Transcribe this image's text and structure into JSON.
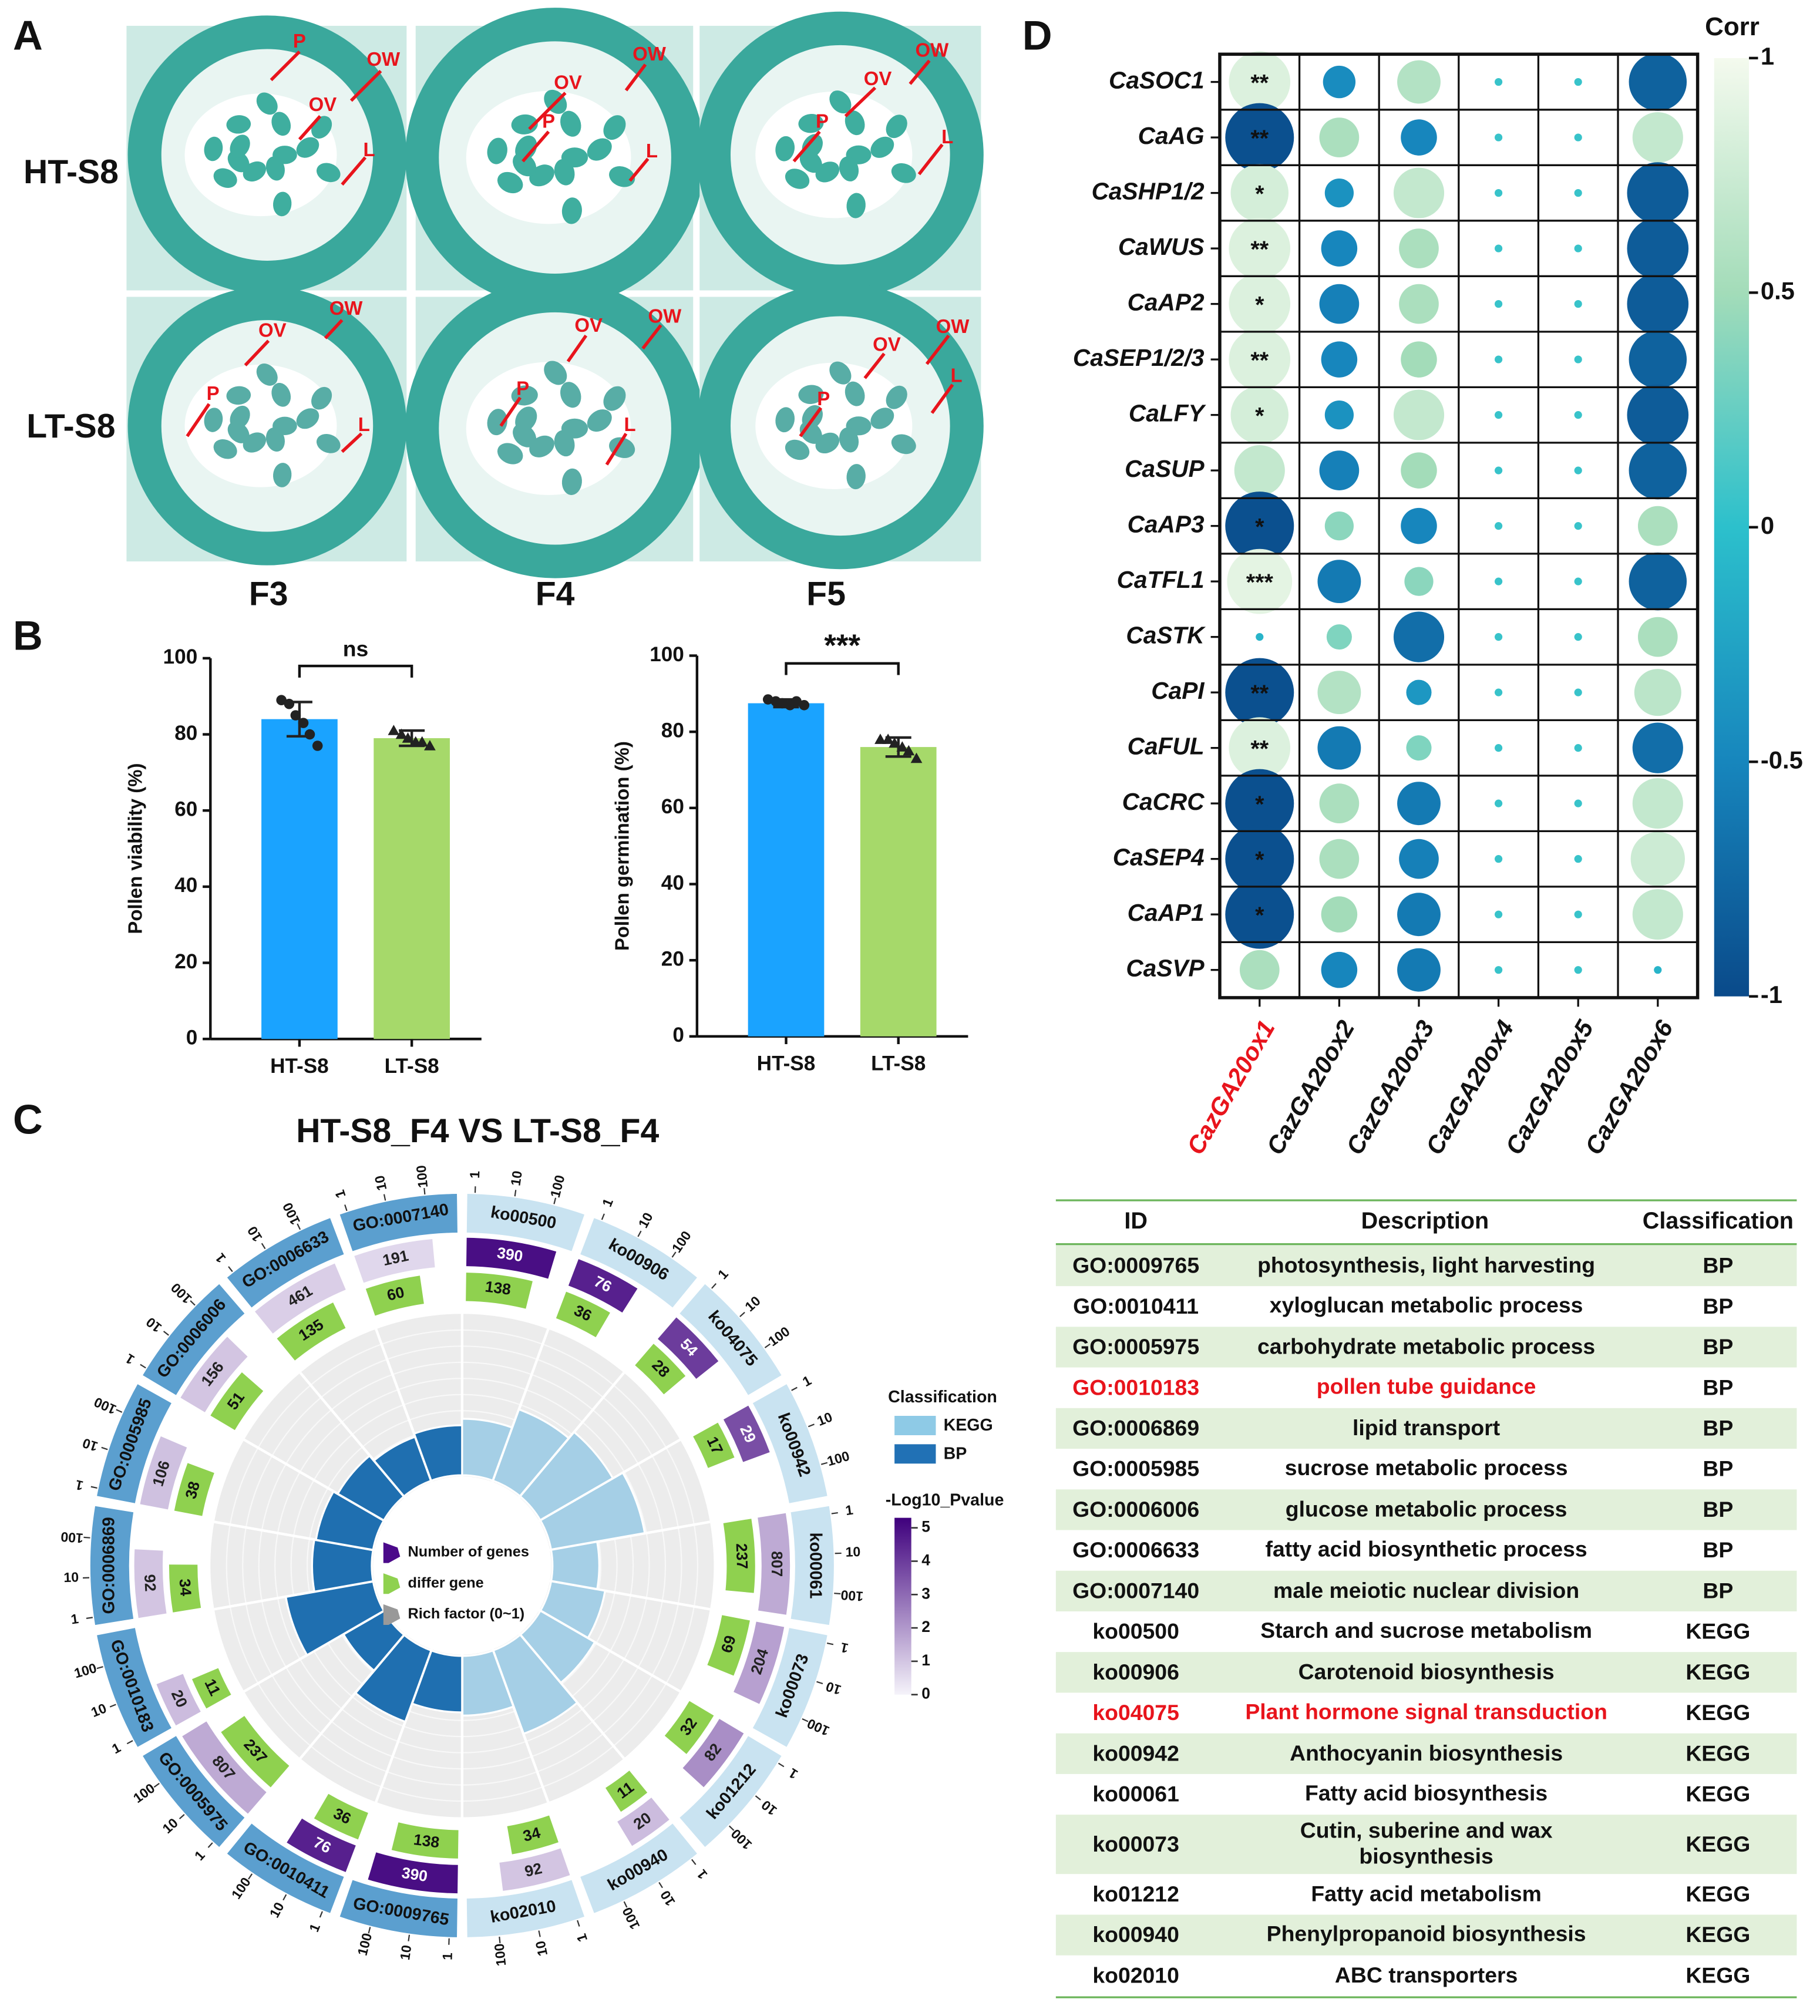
{
  "panel_labels": [
    "A",
    "B",
    "C",
    "D"
  ],
  "panel_a": {
    "row_labels": [
      "HT-S8",
      "LT-S8"
    ],
    "column_labels": [
      "F3",
      "F4",
      "F5"
    ],
    "annotations": [
      "P",
      "OV",
      "OW",
      "L"
    ]
  },
  "chart_data": [
    {
      "type": "bar",
      "categories": [
        "HT-S8",
        "LT-S8"
      ],
      "values": [
        84,
        79
      ],
      "errors": [
        4.5,
        2
      ],
      "points": [
        [
          89,
          88,
          85,
          83,
          80,
          77
        ],
        [
          81,
          80,
          79,
          78,
          78,
          77
        ]
      ],
      "point_markers": [
        "circle",
        "triangle"
      ],
      "colors": [
        "#1aa3ff",
        "#a6d96a"
      ],
      "ylabel": "Pollen viability (%)",
      "ylim": [
        0,
        100
      ],
      "yticks": [
        0,
        20,
        40,
        60,
        80,
        100
      ],
      "significance": "ns"
    },
    {
      "type": "bar",
      "categories": [
        "HT-S8",
        "LT-S8"
      ],
      "values": [
        87.5,
        76
      ],
      "errors": [
        1,
        2.5
      ],
      "points": [
        [
          88.5,
          88,
          87.5,
          87,
          88,
          87
        ],
        [
          78,
          78,
          77,
          76,
          75,
          73
        ]
      ],
      "point_markers": [
        "circle",
        "triangle"
      ],
      "colors": [
        "#1aa3ff",
        "#a6d96a"
      ],
      "ylabel": "Pollen germination (%)",
      "ylim": [
        0,
        100
      ],
      "yticks": [
        0,
        20,
        40,
        60,
        80,
        100
      ],
      "significance": "***"
    },
    {
      "type": "circos",
      "title": "HT-S8_F4 VS LT-S8_F4",
      "categories": [
        "ko00500",
        "ko00906",
        "ko04075",
        "ko00942",
        "ko00061",
        "ko00073",
        "ko01212",
        "ko00940",
        "ko02010",
        "GO:0009765",
        "GO:0010411",
        "GO:0005975",
        "GO:0010183",
        "GO:0006869",
        "GO:0005985",
        "GO:0006006",
        "GO:0006633",
        "GO:0007140"
      ],
      "classification": [
        "KEGG",
        "KEGG",
        "KEGG",
        "KEGG",
        "KEGG",
        "KEGG",
        "KEGG",
        "KEGG",
        "KEGG",
        "BP",
        "BP",
        "BP",
        "BP",
        "BP",
        "BP",
        "BP",
        "BP",
        "BP"
      ],
      "number_of_genes": [
        390,
        76,
        54,
        29,
        807,
        204,
        82,
        20,
        92,
        390,
        76,
        807,
        20,
        92,
        106,
        156,
        461,
        191
      ],
      "differ_genes": [
        138,
        36,
        28,
        17,
        237,
        69,
        32,
        11,
        34,
        138,
        36,
        237,
        11,
        34,
        38,
        51,
        135,
        60
      ],
      "neg_log10_p": [
        5,
        4.6,
        4,
        3.6,
        1.6,
        1.8,
        2.2,
        1.2,
        1.0,
        5,
        4.6,
        1.6,
        1.2,
        1.0,
        1.1,
        1.0,
        0.8,
        0.6
      ],
      "rich_factor": [
        0.35,
        0.47,
        0.52,
        0.59,
        0.29,
        0.34,
        0.39,
        0.55,
        0.37,
        0.35,
        0.47,
        0.29,
        0.55,
        0.37,
        0.36,
        0.33,
        0.29,
        0.31
      ],
      "rlim": [
        0,
        1
      ],
      "outer_ticks": [
        1,
        10,
        100
      ],
      "legend": {
        "classification_title": "Classification",
        "classes": [
          "KEGG",
          "BP"
        ],
        "class_colors": [
          "#8ecae6",
          "#2171b5"
        ],
        "pvalue_title": "-Log10_Pvalue",
        "pvalue_lim": [
          0,
          5.3
        ],
        "pvalue_ticks": [
          0,
          1,
          2,
          3,
          4,
          5
        ],
        "items": [
          "Number of genes",
          "differ gene",
          "Rich factor (0~1)"
        ]
      }
    },
    {
      "type": "correlation",
      "legend_title": "Corr",
      "rows": [
        "CaSOC1",
        "CaAG",
        "CaSHP1/2",
        "CaWUS",
        "CaAP2",
        "CaSEP1/2/3",
        "CaLFY",
        "CaSUP",
        "CaAP3",
        "CaTFL1",
        "CaSTK",
        "CaPI",
        "CaFUL",
        "CaCRC",
        "CaSEP4",
        "CaAP1",
        "CaSVP"
      ],
      "columns": [
        "CazGA20ox1",
        "CazGA20ox2",
        "CazGA20ox3",
        "CazGA20ox4",
        "CazGA20ox5",
        "CazGA20ox6"
      ],
      "column_colors": [
        "#e8141c",
        "#111111",
        "#111111",
        "#111111",
        "#111111",
        "#111111"
      ],
      "values": [
        [
          0.85,
          -0.45,
          0.6,
          0.05,
          0.05,
          -0.8
        ],
        [
          -0.95,
          0.55,
          -0.5,
          0.05,
          0.05,
          0.7
        ],
        [
          0.8,
          -0.4,
          0.7,
          0.05,
          0.05,
          -0.85
        ],
        [
          0.85,
          -0.5,
          0.55,
          0.05,
          0.05,
          -0.85
        ],
        [
          0.85,
          -0.55,
          0.55,
          0.05,
          0.05,
          -0.85
        ],
        [
          0.85,
          -0.5,
          0.5,
          0.05,
          0.05,
          -0.8
        ],
        [
          0.8,
          -0.4,
          0.7,
          0.05,
          0.05,
          -0.85
        ],
        [
          0.7,
          -0.55,
          0.5,
          0.05,
          0.05,
          -0.8
        ],
        [
          -0.95,
          0.4,
          -0.5,
          0.05,
          0.05,
          0.55
        ],
        [
          0.9,
          -0.6,
          0.4,
          0.05,
          0.05,
          -0.8
        ],
        [
          -0.1,
          0.35,
          -0.7,
          0.05,
          0.05,
          0.55
        ],
        [
          -0.95,
          0.6,
          -0.35,
          0.05,
          0.05,
          0.65
        ],
        [
          0.85,
          -0.6,
          0.35,
          0.05,
          0.05,
          -0.7
        ],
        [
          -0.95,
          0.55,
          -0.6,
          0.05,
          0.05,
          0.7
        ],
        [
          -0.95,
          0.55,
          -0.55,
          0.05,
          0.05,
          0.75
        ],
        [
          -0.95,
          0.5,
          -0.6,
          0.05,
          0.05,
          0.7
        ],
        [
          0.55,
          -0.5,
          -0.6,
          0.05,
          0.05,
          -0.1
        ]
      ],
      "significance": [
        [
          "**",
          null,
          null,
          null,
          null,
          null
        ],
        [
          "**",
          null,
          null,
          null,
          null,
          null
        ],
        [
          "*",
          null,
          null,
          null,
          null,
          null
        ],
        [
          "**",
          null,
          null,
          null,
          null,
          null
        ],
        [
          "*",
          null,
          null,
          null,
          null,
          null
        ],
        [
          "**",
          null,
          null,
          null,
          null,
          null
        ],
        [
          "*",
          null,
          null,
          null,
          null,
          null
        ],
        [
          null,
          null,
          null,
          null,
          null,
          null
        ],
        [
          "*",
          null,
          null,
          null,
          null,
          null
        ],
        [
          "***",
          null,
          null,
          null,
          null,
          null
        ],
        [
          null,
          null,
          null,
          null,
          null,
          null
        ],
        [
          "**",
          null,
          null,
          null,
          null,
          null
        ],
        [
          "**",
          null,
          null,
          null,
          null,
          null
        ],
        [
          "*",
          null,
          null,
          null,
          null,
          null
        ],
        [
          "*",
          null,
          null,
          null,
          null,
          null
        ],
        [
          "*",
          null,
          null,
          null,
          null,
          null
        ],
        [
          null,
          null,
          null,
          null,
          null,
          null
        ]
      ],
      "clim": [
        -1,
        1
      ],
      "cticks": [
        1,
        0.5,
        0,
        -0.5,
        -1
      ]
    }
  ],
  "table": {
    "header": [
      "ID",
      "Description",
      "Classification"
    ],
    "rows": [
      [
        "GO:0009765",
        "photosynthesis, light harvesting",
        "BP"
      ],
      [
        "GO:0010411",
        "xyloglucan metabolic process",
        "BP"
      ],
      [
        "GO:0005975",
        "carbohydrate metabolic process",
        "BP"
      ],
      [
        "GO:0010183",
        "pollen tube guidance",
        "BP"
      ],
      [
        "GO:0006869",
        "lipid transport",
        "BP"
      ],
      [
        "GO:0005985",
        "sucrose metabolic process",
        "BP"
      ],
      [
        "GO:0006006",
        "glucose metabolic process",
        "BP"
      ],
      [
        "GO:0006633",
        "fatty acid biosynthetic process",
        "BP"
      ],
      [
        "GO:0007140",
        "male meiotic nuclear division",
        "BP"
      ],
      [
        "ko00500",
        "Starch and sucrose metabolism",
        "KEGG"
      ],
      [
        "ko00906",
        "Carotenoid biosynthesis",
        "KEGG"
      ],
      [
        "ko04075",
        "Plant hormone signal transduction",
        "KEGG"
      ],
      [
        "ko00942",
        "Anthocyanin biosynthesis",
        "KEGG"
      ],
      [
        "ko00061",
        "Fatty acid biosynthesis",
        "KEGG"
      ],
      [
        "ko00073",
        "Cutin, suberine and wax biosynthesis",
        "KEGG"
      ],
      [
        "ko01212",
        "Fatty acid metabolism",
        "KEGG"
      ],
      [
        "ko00940",
        "Phenylpropanoid biosynthesis",
        "KEGG"
      ],
      [
        "ko02010",
        "ABC transporters",
        "KEGG"
      ]
    ],
    "highlight_rows": [
      3,
      11
    ],
    "highlight_color": "#e8141c",
    "stripe_color": "#e2f0da"
  }
}
